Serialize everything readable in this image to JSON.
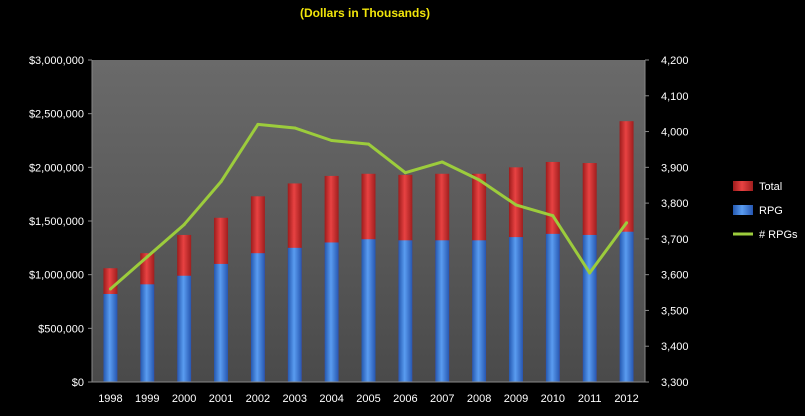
{
  "chart_data": {
    "type": "bar",
    "title": "(Dollars in Thousands)",
    "categories": [
      "1998",
      "1999",
      "2000",
      "2001",
      "2002",
      "2003",
      "2004",
      "2005",
      "2006",
      "2007",
      "2008",
      "2009",
      "2010",
      "2011",
      "2012"
    ],
    "series": [
      {
        "name": "Total",
        "type": "bar",
        "axis": "left",
        "color": "#d02a2a",
        "values": [
          1060000,
          1200000,
          1370000,
          1530000,
          1730000,
          1850000,
          1920000,
          1940000,
          1930000,
          1940000,
          1940000,
          2000000,
          2050000,
          2040000,
          2430000
        ]
      },
      {
        "name": "RPG",
        "type": "bar",
        "axis": "left",
        "color": "#3a7fe0",
        "values": [
          820000,
          910000,
          990000,
          1100000,
          1200000,
          1250000,
          1300000,
          1330000,
          1320000,
          1320000,
          1320000,
          1350000,
          1380000,
          1370000,
          1400000
        ]
      },
      {
        "name": "# RPGs",
        "type": "line",
        "axis": "right",
        "color": "#9ccc3c",
        "values": [
          3560,
          3650,
          3740,
          3860,
          4020,
          4010,
          3975,
          3965,
          3885,
          3915,
          3865,
          3795,
          3765,
          3605,
          3745
        ]
      }
    ],
    "left_axis": {
      "ylim": [
        0,
        3000000
      ],
      "ticks": [
        "$0",
        "$500,000",
        "$1,000,000",
        "$1,500,000",
        "$2,000,000",
        "$2,500,000",
        "$3,000,000"
      ]
    },
    "right_axis": {
      "ylim": [
        3300,
        4200
      ],
      "ticks": [
        "3,300",
        "3,400",
        "3,500",
        "3,600",
        "3,700",
        "3,800",
        "3,900",
        "4,000",
        "4,100",
        "4,200"
      ]
    },
    "legend": {
      "placement": "right",
      "entries": [
        "Total",
        "RPG",
        "# RPGs"
      ]
    },
    "grid": false,
    "colors": {
      "background": "#000000",
      "plot_area": "#5a5a5a",
      "title": "#f2e60a"
    }
  }
}
